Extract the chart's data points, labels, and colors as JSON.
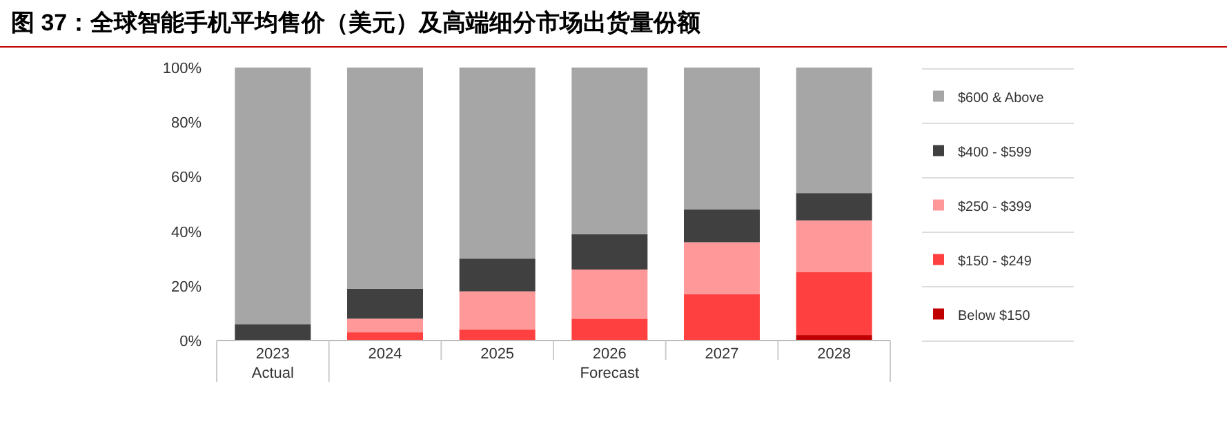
{
  "chart_data": {
    "type": "bar",
    "stacked": true,
    "title": "图 37：全球智能手机平均售价（美元）及高端细分市场出货量份额",
    "categories": [
      "2023",
      "2024",
      "2025",
      "2026",
      "2027",
      "2028"
    ],
    "series": [
      {
        "name": "Below $150",
        "color": "#c00000",
        "values": [
          0,
          0,
          0,
          0,
          0,
          2
        ]
      },
      {
        "name": "$150 - $249",
        "color": "#ff4040",
        "values": [
          0,
          3,
          4,
          8,
          17,
          23
        ]
      },
      {
        "name": "$250 - $399",
        "color": "#ff9999",
        "values": [
          0,
          5,
          14,
          18,
          19,
          19
        ]
      },
      {
        "name": "$400 - $599",
        "color": "#404040",
        "values": [
          6,
          11,
          12,
          13,
          12,
          10
        ]
      },
      {
        "name": "$600 & Above",
        "color": "#a6a6a6",
        "values": [
          94,
          81,
          70,
          61,
          52,
          46
        ]
      }
    ],
    "ylim": [
      0,
      100
    ],
    "yticks": [
      {
        "value": 0,
        "label": "0%"
      },
      {
        "value": 20,
        "label": "20%"
      },
      {
        "value": 40,
        "label": "40%"
      },
      {
        "value": 60,
        "label": "60%"
      },
      {
        "value": 80,
        "label": "80%"
      },
      {
        "value": 100,
        "label": "100%"
      }
    ],
    "legend": "right",
    "annotations": [
      "Actual",
      "Forecast"
    ]
  }
}
